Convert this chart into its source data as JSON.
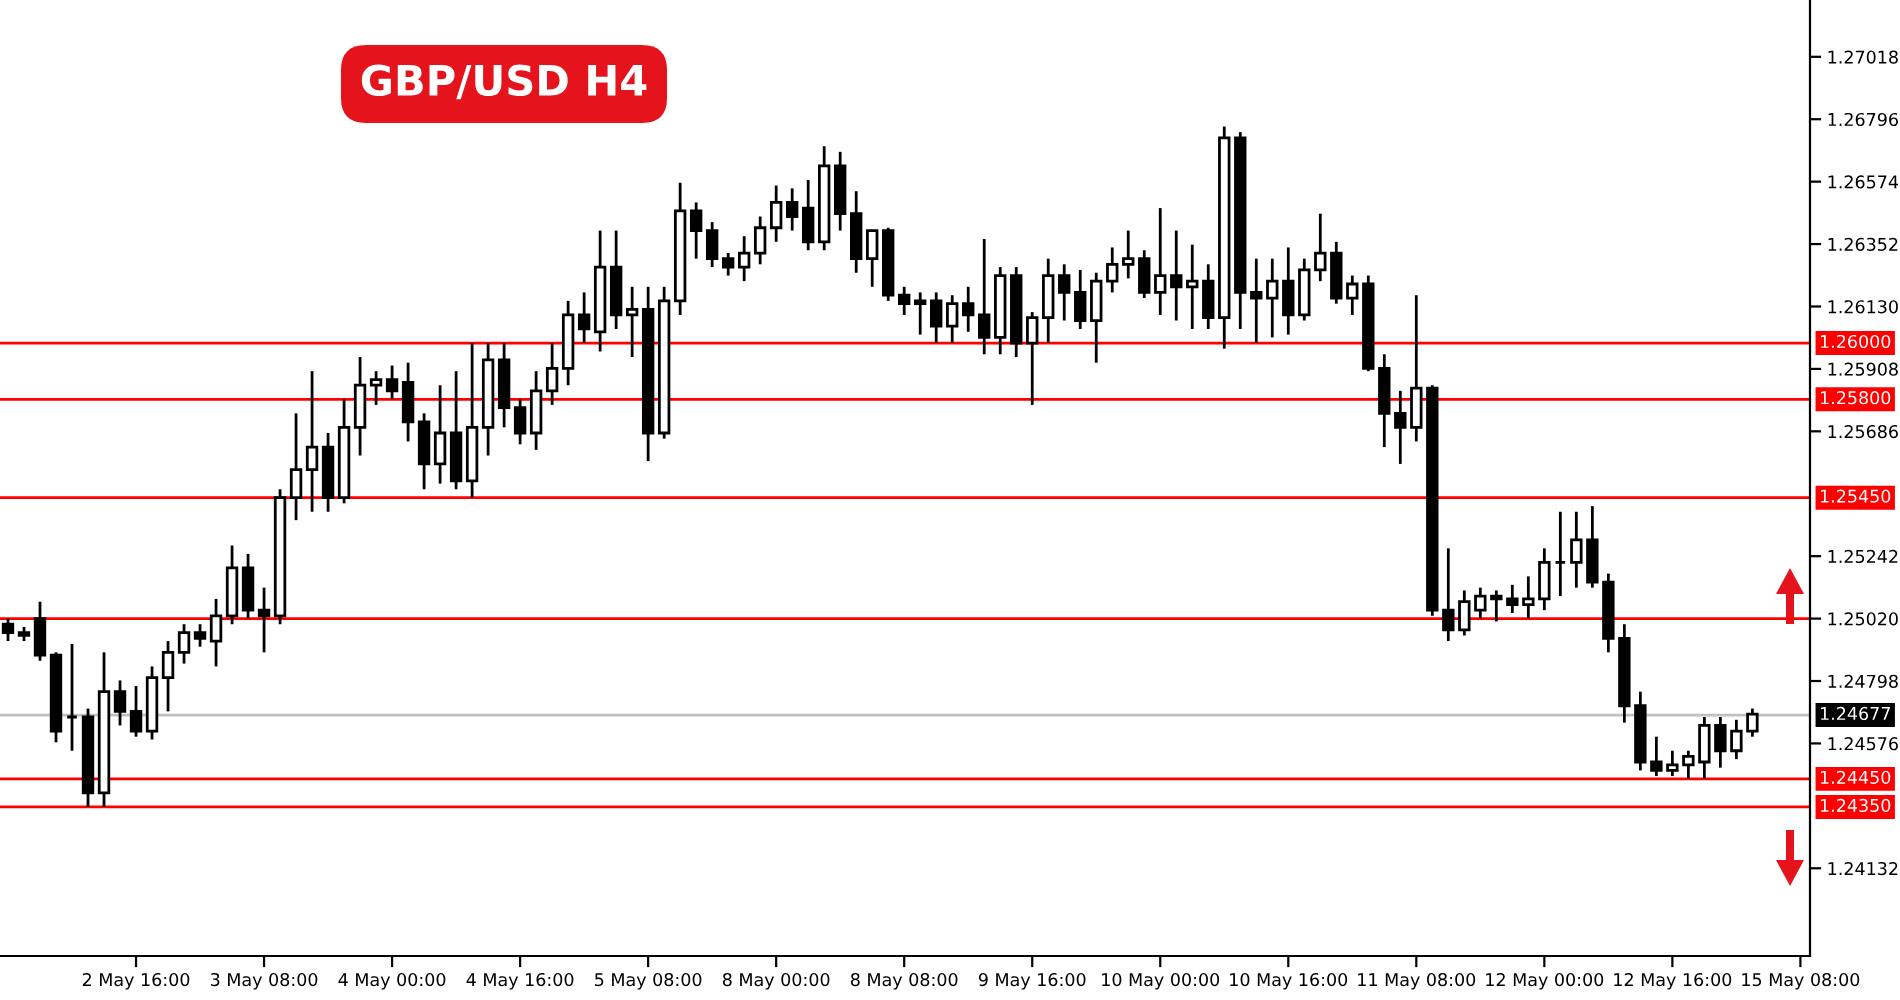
{
  "chart_data": {
    "type": "candlestick",
    "title": "GBP/USD H4",
    "categories": [
      null,
      null,
      null,
      null,
      null,
      null,
      null,
      null,
      "2 May 16:00",
      null,
      null,
      null,
      null,
      null,
      null,
      null,
      "3 May 08:00",
      null,
      null,
      null,
      null,
      null,
      null,
      null,
      "4 May 00:00",
      null,
      null,
      null,
      null,
      null,
      null,
      null,
      "4 May 16:00",
      null,
      null,
      null,
      null,
      null,
      null,
      null,
      "5 May 08:00",
      null,
      null,
      null,
      null,
      null,
      null,
      null,
      "8 May 00:00",
      null,
      null,
      null,
      null,
      null,
      null,
      null,
      "8 May 08:00",
      null,
      null,
      null,
      null,
      null,
      null,
      null,
      "9 May 16:00",
      null,
      null,
      null,
      null,
      null,
      null,
      null,
      "10 May 00:00",
      null,
      null,
      null,
      null,
      null,
      null,
      null,
      "10 May 16:00",
      null,
      null,
      null,
      null,
      null,
      null,
      null,
      "11 May 08:00",
      null,
      null,
      null,
      null,
      null,
      null,
      null,
      "12 May 00:00",
      null,
      null,
      null,
      null,
      null,
      null,
      null,
      "12 May 16:00",
      null,
      null,
      null,
      null,
      null,
      null,
      null,
      "15 May 08:00"
    ],
    "ohlc": [
      [
        1.25,
        1.2502,
        1.2494,
        1.2497
      ],
      [
        1.2497,
        1.2499,
        1.2494,
        1.2496
      ],
      [
        1.2502,
        1.2508,
        1.2487,
        1.2489
      ],
      [
        1.2489,
        1.249,
        1.2458,
        1.2462
      ],
      [
        1.2467,
        1.2493,
        1.2455,
        1.2467
      ],
      [
        1.2467,
        1.247,
        1.2435,
        1.244
      ],
      [
        1.244,
        1.249,
        1.2435,
        1.2476
      ],
      [
        1.2476,
        1.248,
        1.2464,
        1.2469
      ],
      [
        1.2469,
        1.2478,
        1.246,
        1.2462
      ],
      [
        1.2462,
        1.2485,
        1.2459,
        1.2481
      ],
      [
        1.2481,
        1.2494,
        1.2469,
        1.249
      ],
      [
        1.249,
        1.25,
        1.2486,
        1.2497
      ],
      [
        1.2497,
        1.25,
        1.2492,
        1.2495
      ],
      [
        1.2494,
        1.2509,
        1.2485,
        1.2503
      ],
      [
        1.2503,
        1.2528,
        1.25,
        1.252
      ],
      [
        1.252,
        1.2525,
        1.2502,
        1.2505
      ],
      [
        1.2505,
        1.2513,
        1.249,
        1.2503
      ],
      [
        1.2503,
        1.2548,
        1.25,
        1.2545
      ],
      [
        1.2545,
        1.2575,
        1.2537,
        1.2555
      ],
      [
        1.2555,
        1.259,
        1.254,
        1.2563
      ],
      [
        1.2563,
        1.2568,
        1.254,
        1.2545
      ],
      [
        1.2545,
        1.258,
        1.2543,
        1.257
      ],
      [
        1.257,
        1.2595,
        1.256,
        1.2585
      ],
      [
        1.2585,
        1.259,
        1.2578,
        1.2587
      ],
      [
        1.2587,
        1.2592,
        1.258,
        1.2583
      ],
      [
        1.2586,
        1.2593,
        1.2565,
        1.2572
      ],
      [
        1.2572,
        1.2575,
        1.2548,
        1.2557
      ],
      [
        1.2557,
        1.2585,
        1.255,
        1.2568
      ],
      [
        1.2568,
        1.259,
        1.2548,
        1.2551
      ],
      [
        1.2551,
        1.26,
        1.2545,
        1.257
      ],
      [
        1.257,
        1.26,
        1.256,
        1.2594
      ],
      [
        1.2594,
        1.26,
        1.257,
        1.2577
      ],
      [
        1.2577,
        1.258,
        1.2564,
        1.2568
      ],
      [
        1.2568,
        1.259,
        1.2562,
        1.2583
      ],
      [
        1.2583,
        1.26,
        1.2578,
        1.2591
      ],
      [
        1.2591,
        1.2615,
        1.2585,
        1.261
      ],
      [
        1.261,
        1.2618,
        1.26,
        1.2605
      ],
      [
        1.2604,
        1.264,
        1.2597,
        1.2627
      ],
      [
        1.2627,
        1.264,
        1.2605,
        1.261
      ],
      [
        1.261,
        1.262,
        1.2595,
        1.2612
      ],
      [
        1.2612,
        1.262,
        1.2558,
        1.2568
      ],
      [
        1.2568,
        1.262,
        1.2566,
        1.2615
      ],
      [
        1.2615,
        1.2657,
        1.261,
        1.2647
      ],
      [
        1.2647,
        1.265,
        1.263,
        1.264
      ],
      [
        1.264,
        1.2643,
        1.2627,
        1.263
      ],
      [
        1.263,
        1.2632,
        1.2624,
        1.2627
      ],
      [
        1.2627,
        1.2638,
        1.2622,
        1.2632
      ],
      [
        1.2632,
        1.2645,
        1.2628,
        1.2641
      ],
      [
        1.2641,
        1.2656,
        1.2636,
        1.265
      ],
      [
        1.265,
        1.2655,
        1.264,
        1.2645
      ],
      [
        1.2648,
        1.2658,
        1.2633,
        1.2636
      ],
      [
        1.2636,
        1.267,
        1.2633,
        1.2663
      ],
      [
        1.2663,
        1.2668,
        1.264,
        1.2646
      ],
      [
        1.2646,
        1.2654,
        1.2625,
        1.263
      ],
      [
        1.263,
        1.264,
        1.262,
        1.264
      ],
      [
        1.264,
        1.2641,
        1.2615,
        1.2617
      ],
      [
        1.2617,
        1.262,
        1.261,
        1.2614
      ],
      [
        1.2614,
        1.2618,
        1.2603,
        1.2615
      ],
      [
        1.2615,
        1.2618,
        1.26,
        1.2606
      ],
      [
        1.2606,
        1.2617,
        1.26,
        1.2614
      ],
      [
        1.2614,
        1.262,
        1.2604,
        1.261
      ],
      [
        1.261,
        1.2637,
        1.2596,
        1.2602
      ],
      [
        1.2602,
        1.2627,
        1.2596,
        1.2624
      ],
      [
        1.2624,
        1.2627,
        1.2595,
        1.26
      ],
      [
        1.26,
        1.2611,
        1.2578,
        1.2609
      ],
      [
        1.2609,
        1.263,
        1.26,
        1.2624
      ],
      [
        1.2624,
        1.2628,
        1.2608,
        1.2618
      ],
      [
        1.2618,
        1.2626,
        1.2605,
        1.2608
      ],
      [
        1.2608,
        1.2625,
        1.2593,
        1.2622
      ],
      [
        1.2622,
        1.2634,
        1.2618,
        1.2628
      ],
      [
        1.2628,
        1.264,
        1.2623,
        1.263
      ],
      [
        1.263,
        1.2633,
        1.2616,
        1.2618
      ],
      [
        1.2618,
        1.2648,
        1.261,
        1.2624
      ],
      [
        1.2624,
        1.264,
        1.2608,
        1.262
      ],
      [
        1.262,
        1.2635,
        1.2605,
        1.2622
      ],
      [
        1.2622,
        1.2628,
        1.2605,
        1.2609
      ],
      [
        1.2609,
        1.2677,
        1.2598,
        1.2673
      ],
      [
        1.2673,
        1.2675,
        1.2605,
        1.2618
      ],
      [
        1.2618,
        1.263,
        1.26,
        1.2616
      ],
      [
        1.2616,
        1.263,
        1.2602,
        1.2622
      ],
      [
        1.2622,
        1.2634,
        1.2603,
        1.261
      ],
      [
        1.261,
        1.263,
        1.2608,
        1.2626
      ],
      [
        1.2626,
        1.2646,
        1.2622,
        1.2632
      ],
      [
        1.2632,
        1.2636,
        1.2614,
        1.2616
      ],
      [
        1.2616,
        1.2624,
        1.261,
        1.2621
      ],
      [
        1.2621,
        1.2624,
        1.259,
        1.2591
      ],
      [
        1.2591,
        1.2596,
        1.2563,
        1.2575
      ],
      [
        1.2575,
        1.2583,
        1.2557,
        1.257
      ],
      [
        1.257,
        1.2617,
        1.2565,
        1.2584
      ],
      [
        1.2584,
        1.2585,
        1.2503,
        1.2505
      ],
      [
        1.2505,
        1.2527,
        1.2494,
        1.2498
      ],
      [
        1.2498,
        1.2512,
        1.2496,
        1.2508
      ],
      [
        1.2505,
        1.2513,
        1.2502,
        1.251
      ],
      [
        1.251,
        1.2512,
        1.2501,
        1.2509
      ],
      [
        1.2509,
        1.2514,
        1.2504,
        1.2507
      ],
      [
        1.2507,
        1.2517,
        1.2502,
        1.2509
      ],
      [
        1.2509,
        1.2527,
        1.2505,
        1.2522
      ],
      [
        1.2522,
        1.254,
        1.251,
        1.2522
      ],
      [
        1.2522,
        1.254,
        1.2513,
        1.253
      ],
      [
        1.253,
        1.2542,
        1.2513,
        1.2515
      ],
      [
        1.2515,
        1.2518,
        1.249,
        1.2495
      ],
      [
        1.2495,
        1.25,
        1.2465,
        1.2471
      ],
      [
        1.2471,
        1.2476,
        1.2448,
        1.2451
      ],
      [
        1.2451,
        1.246,
        1.2446,
        1.2448
      ],
      [
        1.2448,
        1.2455,
        1.2446,
        1.245
      ],
      [
        1.245,
        1.2455,
        1.2445,
        1.2453
      ],
      [
        1.2451,
        1.2467,
        1.2445,
        1.2464
      ],
      [
        1.2464,
        1.2467,
        1.2449,
        1.2455
      ],
      [
        1.2455,
        1.2466,
        1.2452,
        1.2462
      ],
      [
        1.2462,
        1.247,
        1.246,
        1.2468
      ],
      null,
      null,
      null
    ],
    "ylim": [
      1.2382,
      1.2722
    ],
    "yticks": [
      {
        "value": 1.27018,
        "label": "1.27018"
      },
      {
        "value": 1.26796,
        "label": "1.26796"
      },
      {
        "value": 1.26574,
        "label": "1.26574"
      },
      {
        "value": 1.26352,
        "label": "1.26352"
      },
      {
        "value": 1.2613,
        "label": "1.26130"
      },
      {
        "value": 1.25908,
        "label": "1.25908"
      },
      {
        "value": 1.25686,
        "label": "1.25686"
      },
      {
        "value": 1.25242,
        "label": "1.25242"
      },
      {
        "value": 1.2502,
        "label": "1.25020"
      },
      {
        "value": 1.24798,
        "label": "1.24798"
      },
      {
        "value": 1.24576,
        "label": "1.24576"
      },
      {
        "value": 1.24132,
        "label": "1.24132"
      }
    ],
    "ref_lines": [
      {
        "axis": "y",
        "value": 1.26,
        "label": "1.26000",
        "color": "#ff0000"
      },
      {
        "axis": "y",
        "value": 1.258,
        "label": "1.25800",
        "color": "#ff0000"
      },
      {
        "axis": "y",
        "value": 1.2545,
        "label": "1.25450",
        "color": "#ff0000"
      },
      {
        "axis": "y",
        "value": 1.2502,
        "label": null,
        "color": "#ff0000"
      },
      {
        "axis": "y",
        "value": 1.24677,
        "label": "1.24677",
        "color": "#c0c0c0"
      },
      {
        "axis": "y",
        "value": 1.2445,
        "label": "1.24450",
        "color": "#ff0000"
      },
      {
        "axis": "y",
        "value": 1.2435,
        "label": "1.24350",
        "color": "#ff0000"
      }
    ],
    "grid": false
  }
}
